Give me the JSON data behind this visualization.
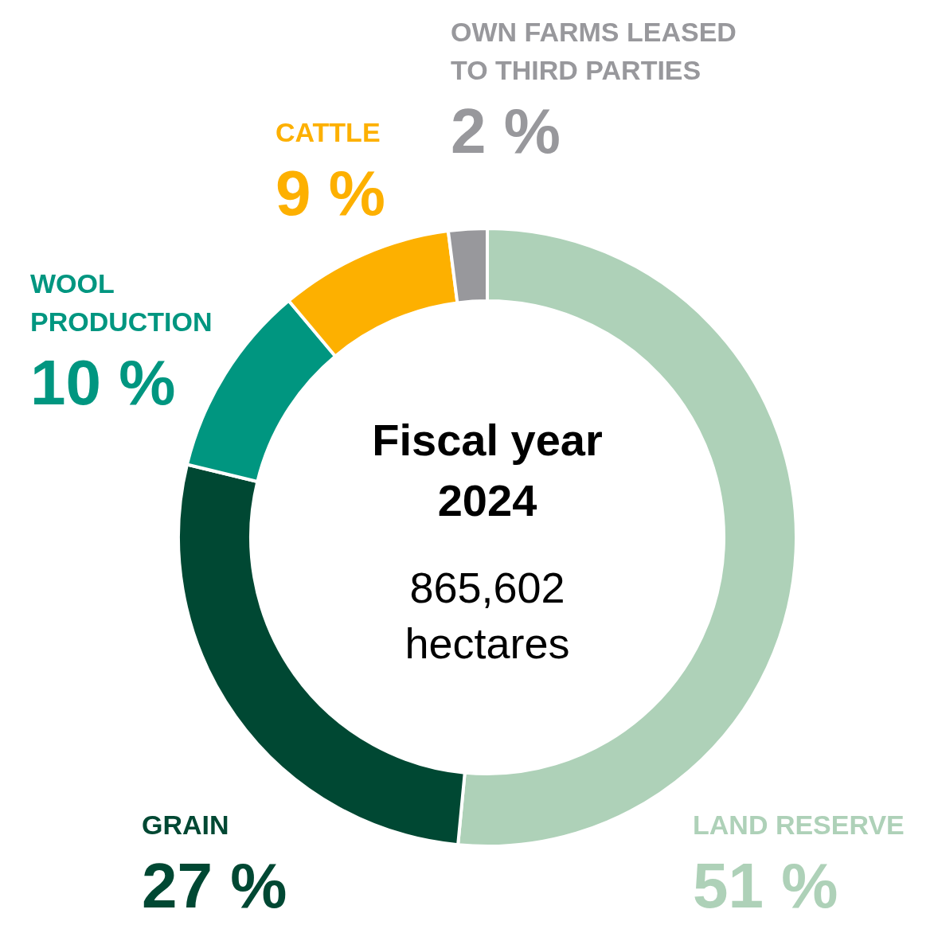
{
  "chart_data": {
    "type": "donut",
    "title": "Fiscal year 2024",
    "subtitle": "865,602 hectares",
    "categories": [
      "LAND RESERVE",
      "GRAIN",
      "WOOL PRODUCTION",
      "CATTLE",
      "OWN FARMS LEASED TO THIRD PARTIES"
    ],
    "values": [
      51,
      27,
      10,
      9,
      2
    ],
    "colors": [
      "#aed1b8",
      "#004833",
      "#009680",
      "#fdb000",
      "#98989c"
    ],
    "value_labels": [
      "51 %",
      "27 %",
      "10 %",
      "9 %",
      "2 %"
    ]
  }
}
